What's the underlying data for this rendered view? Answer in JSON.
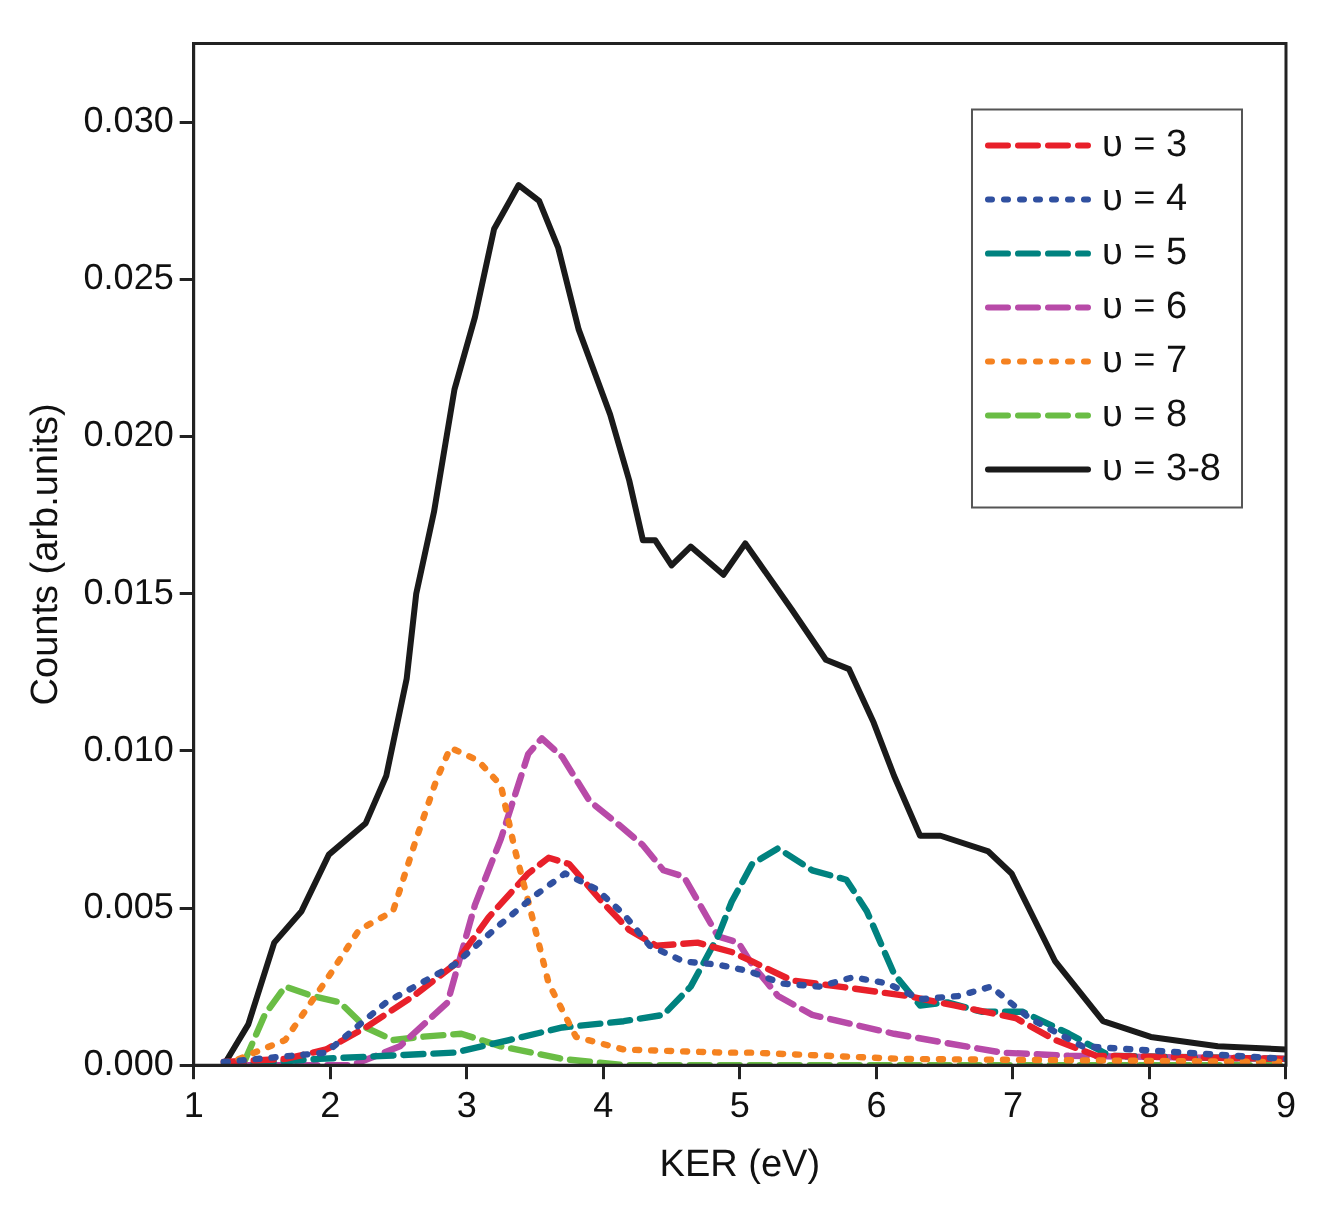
{
  "chart_data": {
    "type": "line",
    "xlabel": "KER (eV)",
    "ylabel": "Counts (arb.units)",
    "xlim": [
      1,
      9
    ],
    "xticks": [
      1,
      2,
      3,
      4,
      5,
      6,
      7,
      8,
      9
    ],
    "ylim": [
      0,
      0.0325
    ],
    "yticks": [
      {
        "value": 0,
        "label": "0.000"
      },
      {
        "value": 0.005,
        "label": "0.005"
      },
      {
        "value": 0.01,
        "label": "0.010"
      },
      {
        "value": 0.015,
        "label": "0.015"
      },
      {
        "value": 0.02,
        "label": "0.020"
      },
      {
        "value": 0.025,
        "label": "0.025"
      },
      {
        "value": 0.03,
        "label": "0.030"
      }
    ],
    "grid": false,
    "legend": "top right",
    "marker": "none",
    "series": [
      {
        "name": "υ = 3",
        "color": "#e8202a",
        "line_style": "dashed",
        "x": [
          1.22,
          1.67,
          1.97,
          2.26,
          2.61,
          2.91,
          3.16,
          3.45,
          3.6,
          3.75,
          3.99,
          4.19,
          4.39,
          4.69,
          4.94,
          5.09,
          5.38,
          5.73,
          6.23,
          6.57,
          7.02,
          7.31,
          7.61,
          9.0
        ],
        "values": [
          0.0001,
          0.0002,
          0.0005,
          0.0012,
          0.0022,
          0.0032,
          0.0047,
          0.0061,
          0.0066,
          0.0064,
          0.0052,
          0.0043,
          0.0038,
          0.0039,
          0.0036,
          0.0033,
          0.0027,
          0.0025,
          0.0022,
          0.0019,
          0.0015,
          0.0008,
          0.0003,
          0.0002
        ]
      },
      {
        "name": "υ = 4",
        "color": "#3050a0",
        "line_style": "dotted",
        "x": [
          1.22,
          1.97,
          2.41,
          2.66,
          2.91,
          3.25,
          3.5,
          3.72,
          3.95,
          4.15,
          4.34,
          4.59,
          4.84,
          5.06,
          5.31,
          5.58,
          5.83,
          6.08,
          6.32,
          6.6,
          6.84,
          7.12,
          7.51,
          9.0
        ],
        "values": [
          0.0001,
          0.0004,
          0.002,
          0.0026,
          0.0032,
          0.0045,
          0.0054,
          0.0061,
          0.0056,
          0.0048,
          0.0038,
          0.0033,
          0.0032,
          0.003,
          0.0026,
          0.0025,
          0.0028,
          0.0026,
          0.0021,
          0.0022,
          0.0025,
          0.0015,
          0.0006,
          0.0002
        ]
      },
      {
        "name": "υ = 5",
        "color": "#00827f",
        "line_style": "dashed",
        "x": [
          1.22,
          1.92,
          2.41,
          2.91,
          3.31,
          3.7,
          4.15,
          4.44,
          4.64,
          4.84,
          4.94,
          5.09,
          5.28,
          5.53,
          5.78,
          5.93,
          6.13,
          6.32,
          6.52,
          6.77,
          7.07,
          7.41,
          7.71,
          9.0
        ],
        "values": [
          0,
          0.0002,
          0.0003,
          0.0004,
          0.0008,
          0.0012,
          0.0014,
          0.0016,
          0.0025,
          0.0041,
          0.0052,
          0.0064,
          0.0069,
          0.0062,
          0.0059,
          0.0049,
          0.0029,
          0.0019,
          0.002,
          0.0017,
          0.0017,
          0.001,
          0.0003,
          0.0002
        ]
      },
      {
        "name": "υ = 6",
        "color": "#b84aa8",
        "line_style": "dashed",
        "x": [
          1.32,
          2.16,
          2.51,
          2.86,
          3.06,
          3.25,
          3.45,
          3.55,
          3.7,
          3.9,
          4.1,
          4.29,
          4.44,
          4.59,
          4.84,
          4.99,
          5.09,
          5.28,
          5.53,
          5.83,
          6.13,
          6.52,
          6.92,
          7.41,
          9.0
        ],
        "values": [
          0,
          0,
          0.0006,
          0.002,
          0.0051,
          0.0072,
          0.0099,
          0.0104,
          0.0098,
          0.0084,
          0.0077,
          0.007,
          0.0062,
          0.006,
          0.0041,
          0.0039,
          0.0032,
          0.0022,
          0.0016,
          0.0013,
          0.001,
          0.0007,
          0.0004,
          0.0003,
          0.0002
        ]
      },
      {
        "name": "υ = 7",
        "color": "#f58220",
        "line_style": "dotted",
        "x": [
          1.22,
          1.67,
          1.97,
          2.21,
          2.46,
          2.63,
          2.78,
          2.88,
          3.08,
          3.25,
          3.35,
          3.48,
          3.6,
          3.8,
          4.15,
          4.89,
          5.09,
          6.18,
          9.0
        ],
        "values": [
          0,
          0.0008,
          0.0027,
          0.0043,
          0.0049,
          0.0072,
          0.0091,
          0.0101,
          0.0097,
          0.0089,
          0.0069,
          0.0047,
          0.0026,
          0.0009,
          0.0005,
          0.0004,
          0.0004,
          0.0002,
          0.0001
        ]
      },
      {
        "name": "υ = 8",
        "color": "#6abd45",
        "line_style": "dashed",
        "x": [
          1.37,
          1.52,
          1.67,
          1.87,
          2.07,
          2.26,
          2.46,
          2.66,
          2.96,
          3.25,
          3.7,
          4.15,
          9.0
        ],
        "values": [
          0.0001,
          0.0016,
          0.0025,
          0.0022,
          0.002,
          0.0012,
          0.0008,
          0.0009,
          0.001,
          0.0006,
          0.0002,
          0,
          0
        ]
      },
      {
        "name": "υ = 3-8",
        "color": "#1a1a1a",
        "line_style": "solid",
        "x": [
          1.22,
          1.4,
          1.59,
          1.79,
          1.99,
          2.26,
          2.41,
          2.56,
          2.63,
          2.76,
          2.91,
          3.06,
          3.2,
          3.38,
          3.53,
          3.67,
          3.82,
          4.05,
          4.19,
          4.29,
          4.38,
          4.5,
          4.64,
          4.88,
          5.04,
          5.38,
          5.63,
          5.8,
          5.98,
          6.13,
          6.32,
          6.47,
          6.82,
          6.99,
          7.31,
          7.66,
          8.01,
          8.5,
          9.0
        ],
        "values": [
          0,
          0.0013,
          0.0039,
          0.0049,
          0.0067,
          0.0077,
          0.0092,
          0.0123,
          0.015,
          0.0176,
          0.0215,
          0.0238,
          0.0266,
          0.028,
          0.0275,
          0.026,
          0.0234,
          0.0207,
          0.0186,
          0.0167,
          0.0167,
          0.0159,
          0.0165,
          0.0156,
          0.0166,
          0.0145,
          0.0129,
          0.0126,
          0.0109,
          0.0092,
          0.0073,
          0.0073,
          0.0068,
          0.0061,
          0.0033,
          0.0014,
          0.0009,
          0.0006,
          0.0005
        ]
      }
    ]
  }
}
